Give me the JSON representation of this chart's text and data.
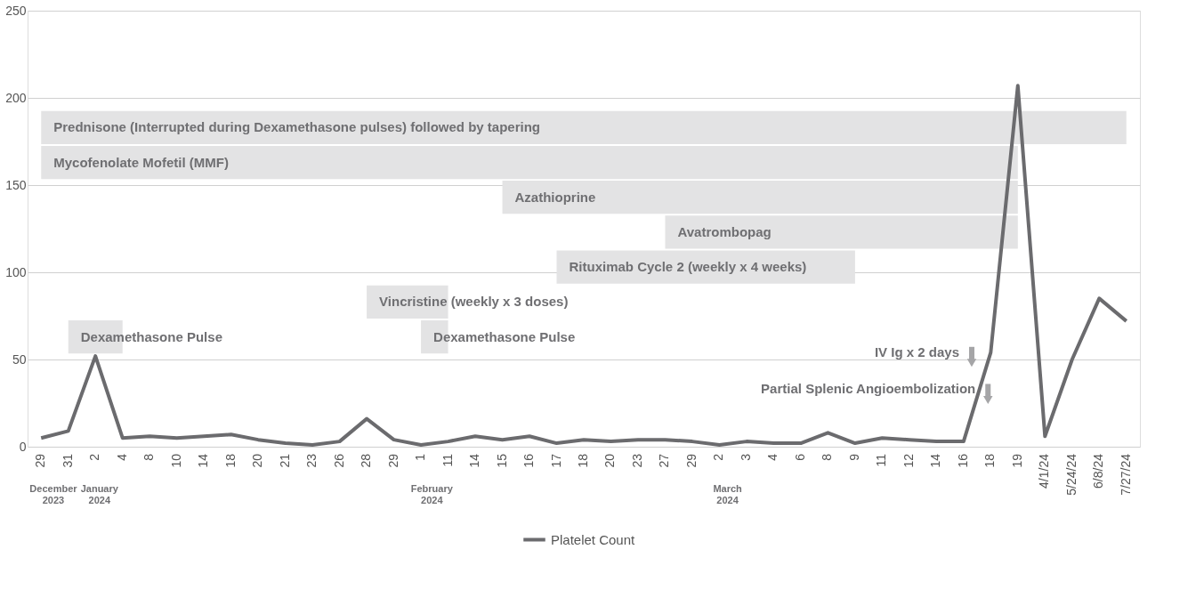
{
  "chart_data": {
    "type": "line",
    "categories": [
      "29",
      "31",
      "2",
      "4",
      "8",
      "10",
      "14",
      "18",
      "20",
      "21",
      "23",
      "26",
      "28",
      "29",
      "1",
      "11",
      "14",
      "15",
      "16",
      "17",
      "18",
      "20",
      "23",
      "27",
      "29",
      "2",
      "3",
      "4",
      "6",
      "8",
      "9",
      "11",
      "12",
      "14",
      "16",
      "18",
      "19",
      "4/1/24",
      "5/24/24",
      "6/8/24",
      "7/27/24"
    ],
    "series": [
      {
        "name": "Platelet Count",
        "color": "#6b6b6e",
        "values": [
          5,
          9,
          52,
          5,
          6,
          5,
          6,
          7,
          4,
          2,
          1,
          3,
          16,
          4,
          1,
          3,
          6,
          4,
          6,
          2,
          4,
          3,
          4,
          4,
          3,
          1,
          3,
          2,
          2,
          8,
          2,
          5,
          4,
          3,
          3,
          54,
          207,
          6,
          50,
          85,
          72
        ]
      }
    ],
    "ylim": [
      0,
      250
    ],
    "yticks": [
      0,
      50,
      100,
      150,
      200,
      250
    ],
    "grid": "y",
    "legend": "bottom",
    "line_style": "solid",
    "marker": "none",
    "bands": [
      {
        "axis": "x",
        "from": "29",
        "to": "7/27/24",
        "label": "Prednisone (Interrupted during Dexamethasone pulses) followed by tapering",
        "color": "#e3e3e4"
      },
      {
        "axis": "x",
        "from": "29",
        "to": "19",
        "label": "Mycofenolate Mofetil (MMF)",
        "color": "#e3e3e4"
      },
      {
        "axis": "x",
        "from": "31",
        "to": "4",
        "label": "Dexamethasone Pulse",
        "color": "#e3e3e4"
      },
      {
        "axis": "x",
        "from": "28",
        "to": "11",
        "label": "Vincristine (weekly x 3 doses)",
        "color": "#e3e3e4"
      },
      {
        "axis": "x",
        "from": "1",
        "to": "11",
        "label": "Dexamethasone Pulse",
        "color": "#e3e3e4"
      },
      {
        "axis": "x",
        "from": "15",
        "to": "19",
        "label": "Azathioprine",
        "color": "#e3e3e4"
      },
      {
        "axis": "x",
        "from": "17",
        "to": "9",
        "label": "Rituximab Cycle 2 (weekly x 4 weeks)",
        "color": "#e3e3e4"
      },
      {
        "axis": "x",
        "from": "27",
        "to": "19",
        "label": "Avatrombopag",
        "color": "#e3e3e4"
      }
    ],
    "annotations": [
      "December 2023",
      "January 2024",
      "February 2024",
      "March 2024",
      "IV Ig x 2 days",
      "Partial Splenic Angioembolization"
    ]
  }
}
